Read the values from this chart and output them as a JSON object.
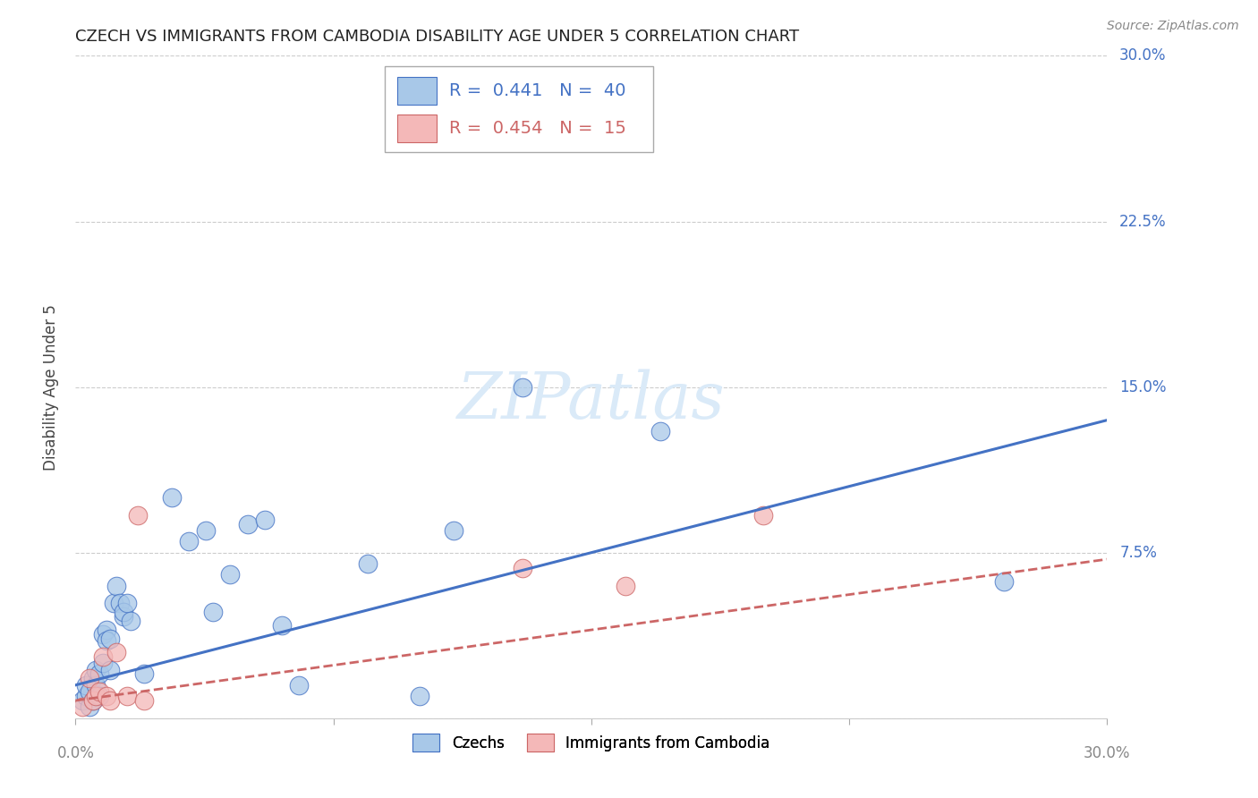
{
  "title": "CZECH VS IMMIGRANTS FROM CAMBODIA DISABILITY AGE UNDER 5 CORRELATION CHART",
  "source": "Source: ZipAtlas.com",
  "ylabel": "Disability Age Under 5",
  "watermark": "ZIPatlas",
  "x_min": 0.0,
  "x_max": 0.3,
  "y_min": 0.0,
  "y_max": 0.3,
  "czech_color": "#a8c8e8",
  "cambodia_color": "#f4b8b8",
  "czech_line_color": "#4472c4",
  "cambodia_line_color": "#cc6666",
  "legend_r_czech": "0.441",
  "legend_n_czech": "40",
  "legend_r_cambodia": "0.454",
  "legend_n_cambodia": "15",
  "czech_points": [
    [
      0.002,
      0.008
    ],
    [
      0.003,
      0.01
    ],
    [
      0.003,
      0.015
    ],
    [
      0.004,
      0.005
    ],
    [
      0.004,
      0.012
    ],
    [
      0.005,
      0.018
    ],
    [
      0.005,
      0.008
    ],
    [
      0.006,
      0.022
    ],
    [
      0.006,
      0.015
    ],
    [
      0.007,
      0.02
    ],
    [
      0.007,
      0.01
    ],
    [
      0.008,
      0.025
    ],
    [
      0.008,
      0.038
    ],
    [
      0.009,
      0.04
    ],
    [
      0.009,
      0.035
    ],
    [
      0.01,
      0.036
    ],
    [
      0.01,
      0.022
    ],
    [
      0.011,
      0.052
    ],
    [
      0.012,
      0.06
    ],
    [
      0.013,
      0.052
    ],
    [
      0.014,
      0.046
    ],
    [
      0.014,
      0.048
    ],
    [
      0.015,
      0.052
    ],
    [
      0.016,
      0.044
    ],
    [
      0.02,
      0.02
    ],
    [
      0.028,
      0.1
    ],
    [
      0.033,
      0.08
    ],
    [
      0.038,
      0.085
    ],
    [
      0.04,
      0.048
    ],
    [
      0.045,
      0.065
    ],
    [
      0.05,
      0.088
    ],
    [
      0.055,
      0.09
    ],
    [
      0.06,
      0.042
    ],
    [
      0.065,
      0.015
    ],
    [
      0.085,
      0.07
    ],
    [
      0.1,
      0.01
    ],
    [
      0.11,
      0.085
    ],
    [
      0.13,
      0.15
    ],
    [
      0.17,
      0.13
    ],
    [
      0.27,
      0.062
    ]
  ],
  "cambodia_points": [
    [
      0.002,
      0.005
    ],
    [
      0.004,
      0.018
    ],
    [
      0.005,
      0.008
    ],
    [
      0.006,
      0.01
    ],
    [
      0.007,
      0.012
    ],
    [
      0.008,
      0.028
    ],
    [
      0.009,
      0.01
    ],
    [
      0.01,
      0.008
    ],
    [
      0.012,
      0.03
    ],
    [
      0.015,
      0.01
    ],
    [
      0.018,
      0.092
    ],
    [
      0.02,
      0.008
    ],
    [
      0.13,
      0.068
    ],
    [
      0.16,
      0.06
    ],
    [
      0.2,
      0.092
    ]
  ],
  "czech_trend_x": [
    0.0,
    0.3
  ],
  "czech_trend_y": [
    0.015,
    0.135
  ],
  "cambodia_trend_x": [
    0.0,
    0.3
  ],
  "cambodia_trend_y": [
    0.008,
    0.072
  ],
  "background_color": "#ffffff",
  "grid_color": "#cccccc",
  "title_fontsize": 13,
  "label_fontsize": 12,
  "tick_fontsize": 12,
  "legend_fontsize": 14,
  "watermark_fontsize": 52,
  "watermark_color": "#daeaf8",
  "source_fontsize": 10,
  "right_tick_color": "#4472c4",
  "bottom_label_color": "#888888"
}
